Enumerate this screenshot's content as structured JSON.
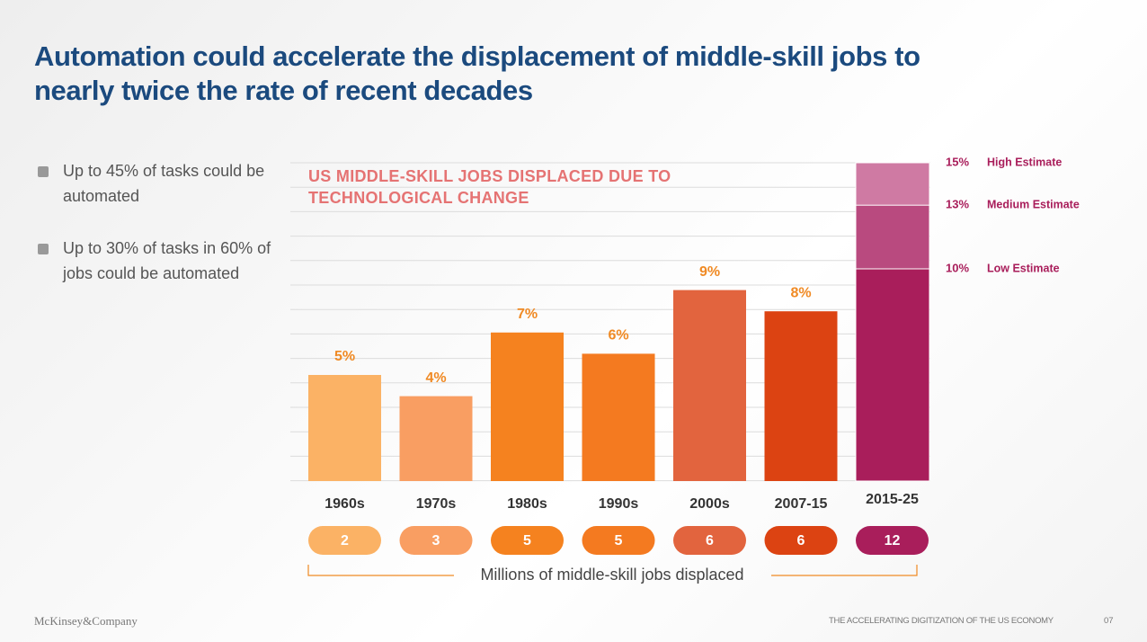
{
  "chart_data": {
    "type": "bar",
    "title": "Automation could accelerate the displacement of middle-skill jobs to nearly twice the rate of recent decades",
    "bullets": [
      "Up to 45% of tasks could be automated",
      "Up to 30% of tasks in 60% of jobs could be automated"
    ],
    "chart_title": "US MIDDLE-SKILL JOBS DISPLACED DUE TO TECHNOLOGICAL CHANGE",
    "categories": [
      "1960s",
      "1970s",
      "1980s",
      "1990s",
      "2000s",
      "2007-15",
      "2015-25"
    ],
    "values": [
      5,
      4,
      7,
      6,
      9,
      8,
      null
    ],
    "value_labels": [
      "5%",
      "4%",
      "7%",
      "6%",
      "9%",
      "8%",
      null
    ],
    "colors": [
      "#fbb265",
      "#f99e62",
      "#f5821f",
      "#f47a20",
      "#e2643e",
      "#dc4312",
      "#a91e5b"
    ],
    "estimates": [
      {
        "name": "High Estimate",
        "value": 15,
        "label": "15%",
        "color": "#cf7aa3"
      },
      {
        "name": "Medium Estimate",
        "value": 13,
        "label": "13%",
        "color": "#b94a7f"
      },
      {
        "name": "Low Estimate",
        "value": 10,
        "label": "10%",
        "color": "#a91e5b"
      }
    ],
    "ylim": [
      0,
      15
    ],
    "jobs_label": "Millions of middle-skill jobs displaced",
    "jobs_millions": [
      2,
      3,
      5,
      5,
      6,
      6,
      12
    ],
    "footer_left": "McKinsey&Company",
    "footer_right": "THE ACCELERATING DIGITIZATION OF THE US ECONOMY",
    "page_number": "07"
  }
}
